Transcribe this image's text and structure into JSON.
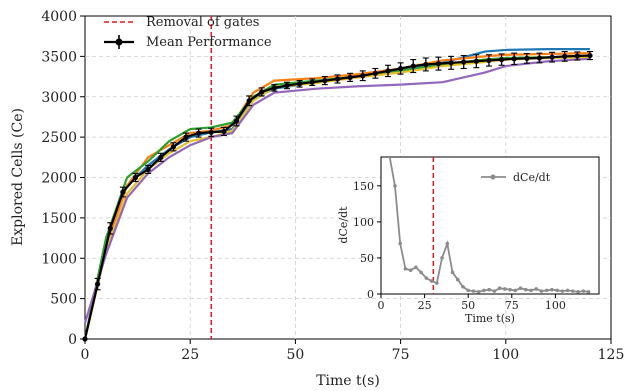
{
  "chart_data": [
    {
      "type": "line",
      "xlabel": "Time t(s)",
      "ylabel": "Explored Cells (Ce)",
      "xlim": [
        0,
        125
      ],
      "ylim": [
        0,
        4000
      ],
      "x_ticks": [
        "0",
        "25",
        "50",
        "75",
        "100",
        "125"
      ],
      "y_ticks": [
        "0",
        "500",
        "1000",
        "1500",
        "2000",
        "2500",
        "3000",
        "3500",
        "4000"
      ],
      "grid": true,
      "legend_position": "top-left",
      "vline": {
        "x": 30,
        "label": "Removal of gates",
        "color": "#e41a1c"
      },
      "mean_series": {
        "name": "Mean Performance",
        "color": "#000000",
        "x": [
          0,
          3,
          6,
          9,
          12,
          15,
          18,
          21,
          24,
          27,
          30,
          33,
          36,
          39,
          42,
          45,
          48,
          51,
          54,
          57,
          60,
          63,
          66,
          69,
          72,
          75,
          78,
          81,
          84,
          87,
          90,
          93,
          96,
          99,
          102,
          105,
          108,
          111,
          114,
          117,
          120
        ],
        "y": [
          0,
          680,
          1370,
          1820,
          2000,
          2100,
          2250,
          2380,
          2500,
          2550,
          2560,
          2570,
          2700,
          2950,
          3060,
          3110,
          3140,
          3160,
          3180,
          3200,
          3220,
          3240,
          3260,
          3290,
          3320,
          3350,
          3380,
          3400,
          3410,
          3420,
          3430,
          3440,
          3450,
          3460,
          3470,
          3475,
          3480,
          3490,
          3500,
          3505,
          3510
        ],
        "error": [
          0,
          70,
          70,
          60,
          50,
          50,
          50,
          50,
          50,
          50,
          50,
          50,
          60,
          60,
          50,
          40,
          40,
          40,
          40,
          50,
          50,
          50,
          60,
          60,
          70,
          70,
          80,
          80,
          80,
          80,
          80,
          80,
          70,
          70,
          70,
          60,
          60,
          60,
          60,
          50,
          50
        ]
      },
      "runs": [
        {
          "color": "#1f77b4",
          "x": [
            0,
            5,
            10,
            15,
            20,
            25,
            30,
            35,
            40,
            45,
            55,
            65,
            75,
            85,
            95,
            100,
            110,
            120
          ],
          "y": [
            0,
            1200,
            1900,
            2150,
            2350,
            2500,
            2560,
            2600,
            2980,
            3100,
            3180,
            3260,
            3330,
            3420,
            3560,
            3580,
            3590,
            3590
          ]
        },
        {
          "color": "#ff7f0e",
          "x": [
            0,
            5,
            10,
            15,
            20,
            25,
            30,
            35,
            40,
            45,
            55,
            65,
            75,
            85,
            95,
            100,
            110,
            120
          ],
          "y": [
            0,
            1150,
            1900,
            2250,
            2400,
            2550,
            2580,
            2650,
            3050,
            3200,
            3230,
            3280,
            3350,
            3450,
            3500,
            3520,
            3530,
            3540
          ]
        },
        {
          "color": "#2ca02c",
          "x": [
            0,
            5,
            10,
            15,
            20,
            25,
            30,
            35,
            40,
            45,
            55,
            65,
            75,
            85,
            95,
            100,
            110,
            120
          ],
          "y": [
            0,
            1250,
            2000,
            2200,
            2450,
            2600,
            2620,
            2680,
            3000,
            3150,
            3200,
            3250,
            3320,
            3400,
            3460,
            3480,
            3490,
            3500
          ]
        },
        {
          "color": "#e6c229",
          "x": [
            0,
            5,
            10,
            15,
            20,
            25,
            30,
            35,
            40,
            45,
            55,
            65,
            75,
            85,
            95,
            100,
            110,
            120
          ],
          "y": [
            0,
            1100,
            1800,
            2100,
            2300,
            2450,
            2500,
            2580,
            2950,
            3120,
            3170,
            3240,
            3300,
            3380,
            3430,
            3460,
            3480,
            3490
          ]
        },
        {
          "color": "#9467bd",
          "x": [
            0,
            5,
            10,
            15,
            20,
            25,
            30,
            35,
            40,
            45,
            55,
            65,
            75,
            85,
            95,
            100,
            110,
            120
          ],
          "y": [
            200,
            1050,
            1750,
            2050,
            2250,
            2400,
            2500,
            2550,
            2900,
            3050,
            3100,
            3130,
            3150,
            3180,
            3300,
            3380,
            3440,
            3470
          ]
        }
      ]
    },
    {
      "type": "line",
      "xlabel": "Time t(s)",
      "ylabel": "dCe/dt",
      "xlim": [
        0,
        125
      ],
      "ylim": [
        0,
        190
      ],
      "x_ticks": [
        "0",
        "25",
        "50",
        "75",
        "100"
      ],
      "y_ticks": [
        "0",
        "50",
        "100",
        "150"
      ],
      "legend_position": "top-right",
      "vline": {
        "x": 30,
        "color": "#e41a1c"
      },
      "series": [
        {
          "name": "dCe/dt",
          "color": "#8c8c8c",
          "x": [
            5,
            8,
            11,
            14,
            17,
            20,
            23,
            26,
            29,
            32,
            35,
            38,
            41,
            44,
            47,
            50,
            53,
            56,
            59,
            62,
            65,
            68,
            71,
            74,
            77,
            80,
            83,
            86,
            89,
            92,
            95,
            98,
            101,
            104,
            107,
            110,
            113,
            116,
            119
          ],
          "y": [
            195,
            150,
            70,
            35,
            33,
            37,
            30,
            22,
            18,
            15,
            50,
            70,
            30,
            20,
            10,
            5,
            4,
            3,
            5,
            6,
            4,
            8,
            7,
            6,
            5,
            8,
            6,
            5,
            7,
            4,
            5,
            6,
            5,
            4,
            5,
            4,
            3,
            4,
            3
          ]
        }
      ]
    }
  ]
}
